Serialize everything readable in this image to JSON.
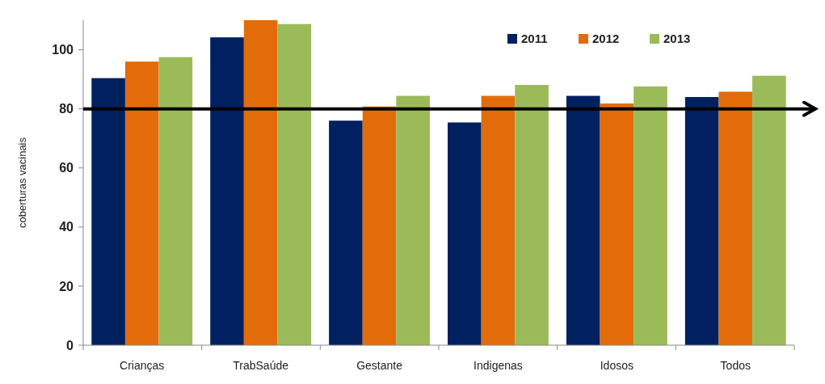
{
  "chart_data": {
    "type": "bar",
    "ylabel": "coberturas vacinais",
    "categories": [
      "Crianças",
      "TrabSaúde",
      "Gestante",
      "Indigenas",
      "Idosos",
      "Todos"
    ],
    "series": [
      {
        "name": "2011",
        "color": "#002060",
        "values": [
          90.4,
          104.2,
          76.0,
          75.4,
          84.4,
          84.0
        ]
      },
      {
        "name": "2012",
        "color": "#e36c0a",
        "values": [
          96.0,
          110,
          80.8,
          84.4,
          81.8,
          85.8
        ]
      },
      {
        "name": "2013",
        "color": "#9bbb59",
        "values": [
          97.5,
          108.7,
          84.4,
          88.1,
          87.6,
          91.2
        ]
      }
    ],
    "ylim": [
      0,
      110
    ],
    "yticks": [
      0,
      20,
      40,
      60,
      80,
      100
    ],
    "legend": "top right",
    "ref_lines": [
      {
        "axis": "y",
        "value": 80,
        "color": "#000000"
      }
    ]
  }
}
